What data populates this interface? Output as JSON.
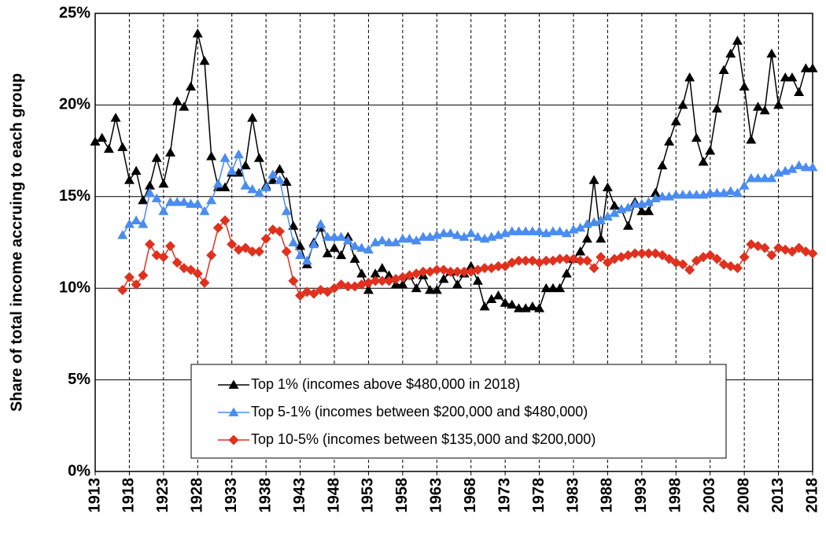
{
  "chart_data": {
    "type": "line",
    "y_label": "Share of total income accruing to each group",
    "x": [
      1913,
      1914,
      1915,
      1916,
      1917,
      1918,
      1919,
      1920,
      1921,
      1922,
      1923,
      1924,
      1925,
      1926,
      1927,
      1928,
      1929,
      1930,
      1931,
      1932,
      1933,
      1934,
      1935,
      1936,
      1937,
      1938,
      1939,
      1940,
      1941,
      1942,
      1943,
      1944,
      1945,
      1946,
      1947,
      1948,
      1949,
      1950,
      1951,
      1952,
      1953,
      1954,
      1955,
      1956,
      1957,
      1958,
      1959,
      1960,
      1961,
      1962,
      1963,
      1964,
      1965,
      1966,
      1967,
      1968,
      1969,
      1970,
      1971,
      1972,
      1973,
      1974,
      1975,
      1976,
      1977,
      1978,
      1979,
      1980,
      1981,
      1982,
      1983,
      1984,
      1985,
      1986,
      1987,
      1988,
      1989,
      1990,
      1991,
      1992,
      1993,
      1994,
      1995,
      1996,
      1997,
      1998,
      1999,
      2000,
      2001,
      2002,
      2003,
      2004,
      2005,
      2006,
      2007,
      2008,
      2009,
      2010,
      2011,
      2012,
      2013,
      2014,
      2015,
      2016,
      2017,
      2018
    ],
    "series": [
      {
        "name": "Top 1% (incomes above $480,000 in 2018)",
        "color": "#000000",
        "marker": "triangle",
        "values": [
          18.0,
          18.2,
          17.6,
          19.3,
          17.7,
          15.9,
          16.4,
          14.8,
          15.6,
          17.1,
          15.7,
          17.4,
          20.2,
          19.9,
          21.0,
          23.9,
          22.4,
          17.2,
          15.5,
          15.5,
          16.3,
          16.3,
          16.7,
          19.3,
          17.1,
          15.6,
          15.9,
          16.5,
          15.8,
          13.4,
          12.3,
          11.3,
          12.5,
          13.3,
          11.9,
          12.2,
          11.8,
          12.8,
          11.6,
          10.8,
          9.9,
          10.8,
          11.1,
          10.7,
          10.2,
          10.2,
          10.7,
          10.0,
          10.7,
          9.9,
          9.9,
          10.5,
          10.9,
          10.2,
          10.8,
          11.2,
          10.4,
          9.0,
          9.4,
          9.6,
          9.2,
          9.1,
          8.9,
          8.9,
          9.0,
          8.9,
          10.0,
          10.0,
          10.0,
          10.8,
          11.6,
          12.0,
          12.7,
          15.9,
          12.7,
          15.5,
          14.5,
          14.3,
          13.4,
          14.7,
          14.2,
          14.2,
          15.2,
          16.7,
          18.0,
          19.1,
          20.0,
          21.5,
          18.2,
          16.9,
          17.5,
          19.8,
          21.9,
          22.8,
          23.5,
          21.0,
          18.1,
          19.9,
          19.7,
          22.8,
          20.0,
          21.5,
          21.5,
          20.7,
          22.0,
          22.0
        ]
      },
      {
        "name": "Top 5-1% (incomes between $200,000 and $480,000)",
        "color": "#4a8cf0",
        "marker": "triangle",
        "values": [
          null,
          null,
          null,
          null,
          12.9,
          13.5,
          13.7,
          13.5,
          15.2,
          14.9,
          14.2,
          14.7,
          14.7,
          14.7,
          14.6,
          14.6,
          14.2,
          14.8,
          15.7,
          17.1,
          16.4,
          17.3,
          15.6,
          15.4,
          15.2,
          15.5,
          16.2,
          15.9,
          14.2,
          12.5,
          11.8,
          11.5,
          12.4,
          13.5,
          12.8,
          12.8,
          12.8,
          12.6,
          12.3,
          12.2,
          12.1,
          12.5,
          12.6,
          12.5,
          12.5,
          12.7,
          12.7,
          12.6,
          12.8,
          12.8,
          12.9,
          13.0,
          13.0,
          12.9,
          12.8,
          13.0,
          12.8,
          12.7,
          12.8,
          12.9,
          13.0,
          13.1,
          13.1,
          13.1,
          13.1,
          13.1,
          13.0,
          13.1,
          13.1,
          13.0,
          13.2,
          13.3,
          13.5,
          13.6,
          13.7,
          13.9,
          14.1,
          14.3,
          14.4,
          14.6,
          14.6,
          14.7,
          14.9,
          15.0,
          15.0,
          15.1,
          15.1,
          15.1,
          15.1,
          15.1,
          15.2,
          15.2,
          15.2,
          15.3,
          15.2,
          15.6,
          16.0,
          16.0,
          16.0,
          16.0,
          16.3,
          16.4,
          16.5,
          16.7,
          16.6,
          16.6
        ]
      },
      {
        "name": "Top 10-5% (incomes between $135,000 and $200,000)",
        "color": "#e0301e",
        "marker": "diamond",
        "values": [
          null,
          null,
          null,
          null,
          9.9,
          10.6,
          10.2,
          10.7,
          12.4,
          11.8,
          11.7,
          12.3,
          11.4,
          11.1,
          11.0,
          10.8,
          10.3,
          11.8,
          13.3,
          13.7,
          12.4,
          12.1,
          12.2,
          12.0,
          12.0,
          12.7,
          13.2,
          13.1,
          12.0,
          10.4,
          9.6,
          9.8,
          9.7,
          9.9,
          9.8,
          10.0,
          10.2,
          10.1,
          10.1,
          10.2,
          10.3,
          10.4,
          10.4,
          10.4,
          10.5,
          10.6,
          10.7,
          10.8,
          10.9,
          10.9,
          11.0,
          11.0,
          10.9,
          10.9,
          10.9,
          10.9,
          11.0,
          11.1,
          11.1,
          11.2,
          11.2,
          11.4,
          11.5,
          11.5,
          11.5,
          11.4,
          11.5,
          11.5,
          11.6,
          11.6,
          11.6,
          11.5,
          11.5,
          11.1,
          11.7,
          11.4,
          11.6,
          11.7,
          11.8,
          11.9,
          11.9,
          11.9,
          11.9,
          11.8,
          11.6,
          11.4,
          11.3,
          11.0,
          11.5,
          11.7,
          11.8,
          11.6,
          11.3,
          11.2,
          11.1,
          11.7,
          12.4,
          12.3,
          12.2,
          11.8,
          12.2,
          12.1,
          12.0,
          12.2,
          12.0,
          11.9
        ]
      }
    ],
    "xlim": [
      1913,
      2018
    ],
    "xticks": [
      1913,
      1918,
      1923,
      1928,
      1933,
      1938,
      1943,
      1948,
      1953,
      1958,
      1963,
      1968,
      1973,
      1978,
      1983,
      1988,
      1993,
      1998,
      2003,
      2008,
      2013,
      2018
    ],
    "ylim": [
      0,
      25
    ],
    "yticks": [
      {
        "value": 0,
        "label": "0%"
      },
      {
        "value": 5,
        "label": "5%"
      },
      {
        "value": 10,
        "label": "10%"
      },
      {
        "value": 15,
        "label": "15%"
      },
      {
        "value": 20,
        "label": "20%"
      },
      {
        "value": 25,
        "label": "25%"
      }
    ],
    "grid": true
  }
}
